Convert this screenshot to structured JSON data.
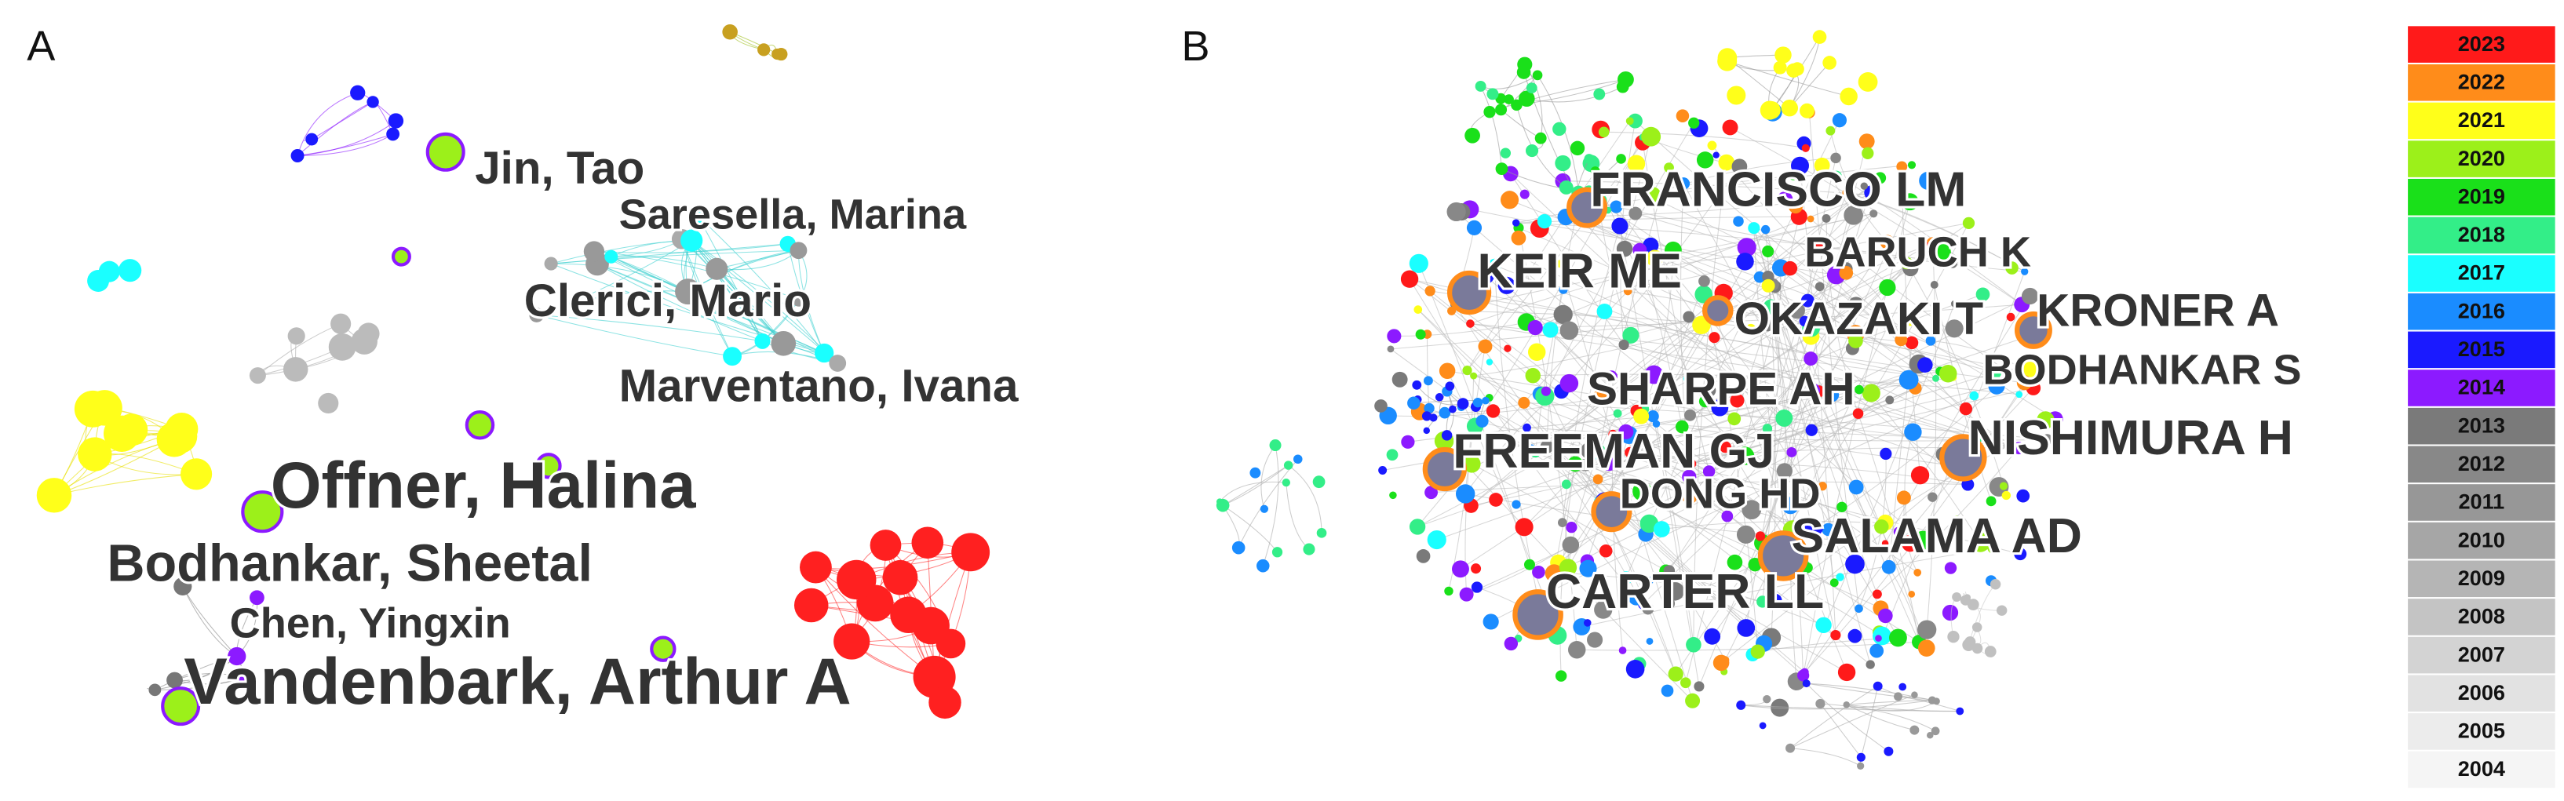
{
  "panel_a": {
    "label": "A",
    "nodes": [
      {
        "label": "Jin, Tao"
      },
      {
        "label": "Saresella, Marina"
      },
      {
        "label": "Clerici, Mario"
      },
      {
        "label": "Marventano, Ivana"
      },
      {
        "label": "Offner, Halina"
      },
      {
        "label": "Bodhankar, Sheetal"
      },
      {
        "label": "Chen, Yingxin"
      },
      {
        "label": "Vandenbark, Arthur A"
      }
    ]
  },
  "panel_b": {
    "label": "B",
    "nodes": [
      {
        "label": "FRANCISCO LM"
      },
      {
        "label": "BARUCH K"
      },
      {
        "label": "KEIR ME"
      },
      {
        "label": "OKAZAKI T"
      },
      {
        "label": "KRONER A"
      },
      {
        "label": "BODHANKAR S"
      },
      {
        "label": "SHARPE AH"
      },
      {
        "label": "NISHIMURA H"
      },
      {
        "label": "FREEMAN GJ"
      },
      {
        "label": "DONG HD"
      },
      {
        "label": "SALAMA AD"
      },
      {
        "label": "CARTER LL"
      }
    ],
    "legend": [
      {
        "year": "2023",
        "color": "#ff1a1a"
      },
      {
        "year": "2022",
        "color": "#ff8c1a"
      },
      {
        "year": "2021",
        "color": "#ffff1a"
      },
      {
        "year": "2020",
        "color": "#9cf01a"
      },
      {
        "year": "2019",
        "color": "#1ae01a"
      },
      {
        "year": "2018",
        "color": "#33ee88"
      },
      {
        "year": "2017",
        "color": "#1affff"
      },
      {
        "year": "2016",
        "color": "#1a8cff"
      },
      {
        "year": "2015",
        "color": "#1a1aff"
      },
      {
        "year": "2014",
        "color": "#8c1aff"
      },
      {
        "year": "2013",
        "color": "#7a7a7a"
      },
      {
        "year": "2012",
        "color": "#888888"
      },
      {
        "year": "2011",
        "color": "#979797"
      },
      {
        "year": "2010",
        "color": "#a6a6a6"
      },
      {
        "year": "2009",
        "color": "#b5b5b5"
      },
      {
        "year": "2008",
        "color": "#c4c4c4"
      },
      {
        "year": "2007",
        "color": "#d3d3d3"
      },
      {
        "year": "2006",
        "color": "#e2e2e2"
      },
      {
        "year": "2005",
        "color": "#ececec"
      },
      {
        "year": "2004",
        "color": "#f5f5f5"
      }
    ]
  }
}
